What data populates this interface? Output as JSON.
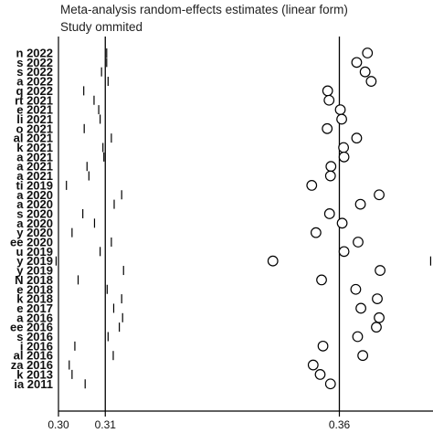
{
  "chart_data": {
    "type": "scatter",
    "title": "Meta-analysis random-effects estimates (linear form)",
    "subtitle": "Study ommited",
    "xlabel": "",
    "ylabel": "",
    "xlim": [
      0.3,
      0.38
    ],
    "xticks": [
      {
        "value": 0.3,
        "label": "0.30"
      },
      {
        "value": 0.31,
        "label": "0.31"
      },
      {
        "value": 0.36,
        "label": "0.36"
      }
    ],
    "reference_lines": [
      0.31,
      0.36
    ],
    "studies": [
      {
        "label": "n 2022",
        "estimate": 0.366,
        "lower": 0.3103,
        "upper": null
      },
      {
        "label": "s 2022",
        "estimate": 0.3637,
        "lower": 0.3103,
        "upper": null
      },
      {
        "label": "s 2022",
        "estimate": 0.3655,
        "lower": 0.3092,
        "upper": null
      },
      {
        "label": "a 2022",
        "estimate": 0.3668,
        "lower": 0.3106,
        "upper": null
      },
      {
        "label": "q 2022",
        "estimate": 0.3575,
        "lower": 0.3054,
        "upper": null
      },
      {
        "label": "rt 2021",
        "estimate": 0.3578,
        "lower": 0.3076,
        "upper": null
      },
      {
        "label": "e 2021",
        "estimate": 0.3602,
        "lower": 0.3086,
        "upper": null
      },
      {
        "label": "li 2021",
        "estimate": 0.3605,
        "lower": 0.3089,
        "upper": null
      },
      {
        "label": "o 2021",
        "estimate": 0.3574,
        "lower": 0.3055,
        "upper": null
      },
      {
        "label": "al 2021",
        "estimate": 0.3637,
        "lower": 0.3113,
        "upper": null
      },
      {
        "label": "k 2021",
        "estimate": 0.3609,
        "lower": 0.3095,
        "upper": null
      },
      {
        "label": "a 2021",
        "estimate": 0.361,
        "lower": 0.3097,
        "upper": null
      },
      {
        "label": "a 2021",
        "estimate": 0.3582,
        "lower": 0.3061,
        "upper": null
      },
      {
        "label": "a 2021",
        "estimate": 0.3581,
        "lower": 0.3065,
        "upper": null
      },
      {
        "label": "ti 2019",
        "estimate": 0.3541,
        "lower": 0.3017,
        "upper": null
      },
      {
        "label": "a 2020",
        "estimate": 0.3685,
        "lower": 0.3135,
        "upper": null
      },
      {
        "label": "a 2020",
        "estimate": 0.3645,
        "lower": 0.3119,
        "upper": null
      },
      {
        "label": "s 2020",
        "estimate": 0.3579,
        "lower": 0.3052,
        "upper": null
      },
      {
        "label": "a 2020",
        "estimate": 0.3606,
        "lower": 0.3077,
        "upper": null
      },
      {
        "label": "y 2020",
        "estimate": 0.355,
        "lower": 0.3029,
        "upper": null
      },
      {
        "label": "ee 2020",
        "estimate": 0.364,
        "lower": 0.3113,
        "upper": null
      },
      {
        "label": "u 2019",
        "estimate": 0.361,
        "lower": 0.3089,
        "upper": null
      },
      {
        "label": "y 2019",
        "estimate": 0.3458,
        "lower": 0.2995,
        "upper": 0.3795
      },
      {
        "label": "y 2019",
        "estimate": 0.3687,
        "lower": 0.3139,
        "upper": null
      },
      {
        "label": "N 2018",
        "estimate": 0.3562,
        "lower": 0.3042,
        "upper": null
      },
      {
        "label": "e 2018",
        "estimate": 0.3635,
        "lower": 0.3104,
        "upper": null
      },
      {
        "label": "k 2018",
        "estimate": 0.3681,
        "lower": 0.3135,
        "upper": null
      },
      {
        "label": "e 2017",
        "estimate": 0.3646,
        "lower": 0.3118,
        "upper": null
      },
      {
        "label": "a 2016",
        "estimate": 0.3685,
        "lower": 0.3137,
        "upper": null
      },
      {
        "label": "ee 2016",
        "estimate": 0.3679,
        "lower": 0.313,
        "upper": null
      },
      {
        "label": "s 2016",
        "estimate": 0.3639,
        "lower": 0.3106,
        "upper": null
      },
      {
        "label": "i 2016",
        "estimate": 0.3565,
        "lower": 0.3035,
        "upper": null
      },
      {
        "label": "al 2016",
        "estimate": 0.365,
        "lower": 0.3117,
        "upper": null
      },
      {
        "label": "za 2016",
        "estimate": 0.3544,
        "lower": 0.3023,
        "upper": 0.3802
      },
      {
        "label": "k 2013",
        "estimate": 0.3559,
        "lower": 0.3029,
        "upper": null
      },
      {
        "label": "ia 2011",
        "estimate": 0.3581,
        "lower": 0.3057,
        "upper": null
      }
    ]
  }
}
